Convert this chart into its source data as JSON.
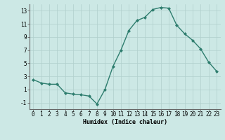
{
  "x": [
    0,
    1,
    2,
    3,
    4,
    5,
    6,
    7,
    8,
    9,
    10,
    11,
    12,
    13,
    14,
    15,
    16,
    17,
    18,
    19,
    20,
    21,
    22,
    23
  ],
  "y": [
    2.5,
    2.0,
    1.8,
    1.8,
    0.5,
    0.3,
    0.2,
    0.0,
    -1.2,
    1.0,
    4.5,
    7.0,
    10.0,
    11.5,
    12.0,
    13.2,
    13.5,
    13.4,
    10.8,
    9.5,
    8.5,
    7.2,
    5.2,
    3.8
  ],
  "line_color": "#2e7d6e",
  "marker": "D",
  "marker_size": 2.0,
  "linewidth": 1.0,
  "bg_color": "#cce8e5",
  "grid_color": "#b0cfcc",
  "xlabel": "Humidex (Indice chaleur)",
  "xlabel_fontsize": 6.0,
  "xlim": [
    -0.5,
    23.5
  ],
  "ylim": [
    -2.0,
    14.0
  ],
  "yticks": [
    -1,
    1,
    3,
    5,
    7,
    9,
    11,
    13
  ],
  "xticks": [
    0,
    1,
    2,
    3,
    4,
    5,
    6,
    7,
    8,
    9,
    10,
    11,
    12,
    13,
    14,
    15,
    16,
    17,
    18,
    19,
    20,
    21,
    22,
    23
  ],
  "tick_fontsize": 5.5
}
